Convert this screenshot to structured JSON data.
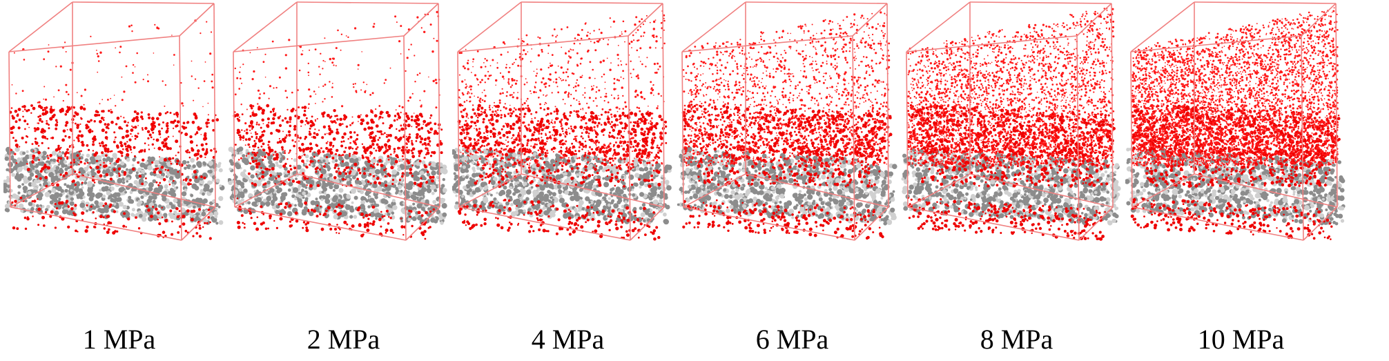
{
  "figure": {
    "panels": [
      {
        "label": "1 MPa",
        "gas_density": 0.12
      },
      {
        "label": "2 MPa",
        "gas_density": 0.22
      },
      {
        "label": "4 MPa",
        "gas_density": 0.45
      },
      {
        "label": "6 MPa",
        "gas_density": 0.62
      },
      {
        "label": "8 MPa",
        "gas_density": 0.82
      },
      {
        "label": "10 MPa",
        "gas_density": 1.0
      }
    ],
    "colors": {
      "box_edge": "#f08080",
      "gas_molecule": "#ff1a1a",
      "adsorbed_layer": "#ee0000",
      "matrix_atom": "#8c8c8c",
      "matrix_highlight": "#d0d0d0"
    }
  }
}
